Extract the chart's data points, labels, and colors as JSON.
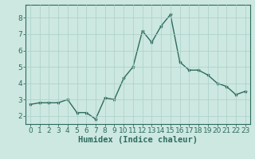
{
  "x": [
    0,
    1,
    2,
    3,
    4,
    5,
    6,
    7,
    8,
    9,
    10,
    11,
    12,
    13,
    14,
    15,
    16,
    17,
    18,
    19,
    20,
    21,
    22,
    23
  ],
  "y": [
    2.7,
    2.8,
    2.8,
    2.8,
    3.0,
    2.2,
    2.2,
    1.8,
    3.1,
    3.0,
    4.3,
    5.0,
    7.2,
    6.5,
    7.5,
    8.2,
    5.3,
    4.8,
    4.8,
    4.5,
    4.0,
    3.8,
    3.3,
    3.5
  ],
  "line_color": "#2e6b5e",
  "marker": "*",
  "marker_size": 3.0,
  "bg_color": "#cce8e0",
  "grid_color": "#aacfc7",
  "xlabel": "Humidex (Indice chaleur)",
  "xlabel_fontsize": 7.5,
  "tick_fontsize": 6.5,
  "xlim": [
    -0.5,
    23.5
  ],
  "ylim": [
    1.5,
    8.8
  ],
  "yticks": [
    2,
    3,
    4,
    5,
    6,
    7,
    8
  ],
  "xticks": [
    0,
    1,
    2,
    3,
    4,
    5,
    6,
    7,
    8,
    9,
    10,
    11,
    12,
    13,
    14,
    15,
    16,
    17,
    18,
    19,
    20,
    21,
    22,
    23
  ],
  "spine_color": "#2e6b5e",
  "linewidth": 1.0
}
